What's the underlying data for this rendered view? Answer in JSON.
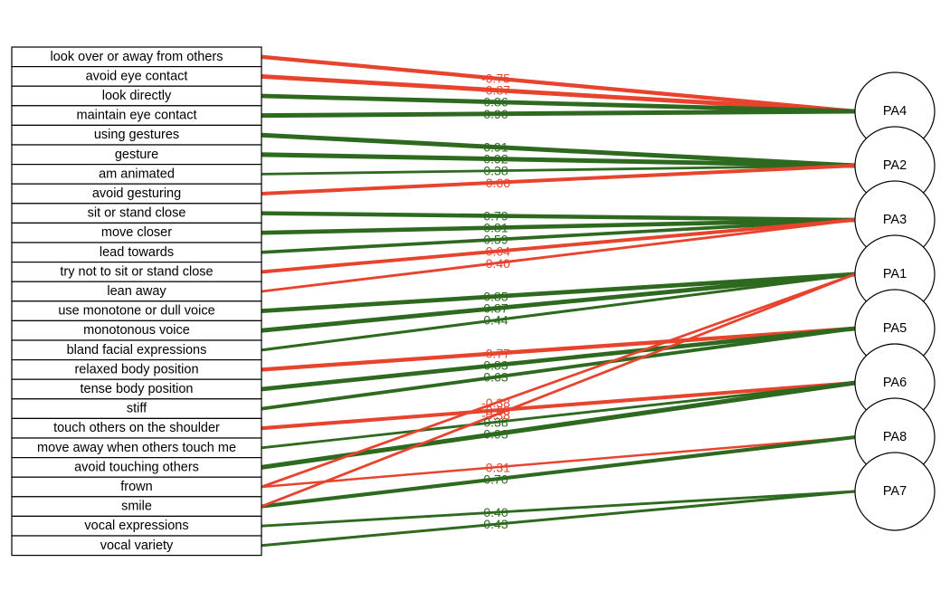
{
  "colors": {
    "positive": "#2d6a1f",
    "negative": "#e8432d"
  },
  "items": [
    "look over or away from others",
    "avoid eye contact",
    "look directly",
    "maintain eye contact",
    "using gestures",
    "gesture",
    "am animated",
    "avoid gesturing",
    "sit or stand close",
    "move closer",
    "lead towards",
    "try not to sit or stand close",
    "lean away",
    "use monotone or dull voice",
    "monotonous voice",
    "bland facial expressions",
    "relaxed body position",
    "tense body position",
    "stiff",
    "touch others on the shoulder",
    "move away when others touch me",
    "avoid touching others",
    "frown",
    "smile",
    "vocal expressions",
    "vocal variety"
  ],
  "factors": [
    "PA4",
    "PA2",
    "PA3",
    "PA1",
    "PA5",
    "PA6",
    "PA8",
    "PA7"
  ],
  "loadings": [
    {
      "item": 0,
      "factor": "PA4",
      "label": "-0.75",
      "value": -0.75
    },
    {
      "item": 1,
      "factor": "PA4",
      "label": "-0.87",
      "value": -0.87
    },
    {
      "item": 2,
      "factor": "PA4",
      "label": "0.86",
      "value": 0.86
    },
    {
      "item": 3,
      "factor": "PA4",
      "label": "0.90",
      "value": 0.9
    },
    {
      "item": 4,
      "factor": "PA2",
      "label": "0.91",
      "value": 0.91
    },
    {
      "item": 5,
      "factor": "PA2",
      "label": "0.92",
      "value": 0.92
    },
    {
      "item": 6,
      "factor": "PA2",
      "label": "0.38",
      "value": 0.38
    },
    {
      "item": 7,
      "factor": "PA2",
      "label": "-0.66",
      "value": -0.66
    },
    {
      "item": 8,
      "factor": "PA3",
      "label": "0.79",
      "value": 0.79
    },
    {
      "item": 9,
      "factor": "PA3",
      "label": "0.81",
      "value": 0.81
    },
    {
      "item": 10,
      "factor": "PA3",
      "label": "0.59",
      "value": 0.59
    },
    {
      "item": 11,
      "factor": "PA3",
      "label": "-0.64",
      "value": -0.64
    },
    {
      "item": 12,
      "factor": "PA3",
      "label": "-0.40",
      "value": -0.4
    },
    {
      "item": 13,
      "factor": "PA1",
      "label": "0.85",
      "value": 0.85
    },
    {
      "item": 14,
      "factor": "PA1",
      "label": "0.87",
      "value": 0.87
    },
    {
      "item": 15,
      "factor": "PA1",
      "label": "0.44",
      "value": 0.44
    },
    {
      "item": 16,
      "factor": "PA5",
      "label": "-0.77",
      "value": -0.77
    },
    {
      "item": 17,
      "factor": "PA5",
      "label": "0.83",
      "value": 0.83
    },
    {
      "item": 18,
      "factor": "PA5",
      "label": "0.63",
      "value": 0.63
    },
    {
      "item": 19,
      "factor": "PA6",
      "label": "-0.68",
      "value": -0.68
    },
    {
      "item": 20,
      "factor": "PA6",
      "label": "0.38",
      "value": 0.38
    },
    {
      "item": 21,
      "factor": "PA6",
      "label": "0.93",
      "value": 0.93
    },
    {
      "item": 22,
      "factor": "PA8",
      "label": "-0.31",
      "value": -0.31
    },
    {
      "item": 22,
      "factor": "PA1",
      "label": "-0.38",
      "value": -0.38
    },
    {
      "item": 23,
      "factor": "PA8",
      "label": "0.70",
      "value": 0.7
    },
    {
      "item": 23,
      "factor": "PA1",
      "label": "-0.38",
      "value": -0.38
    },
    {
      "item": 24,
      "factor": "PA7",
      "label": "0.40",
      "value": 0.4
    },
    {
      "item": 25,
      "factor": "PA7",
      "label": "0.43",
      "value": 0.43
    }
  ]
}
